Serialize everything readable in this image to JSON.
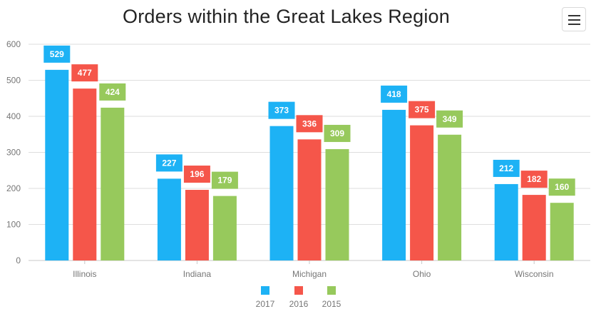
{
  "header": {
    "title": "Orders within the Great Lakes Region",
    "menu_icon": "hamburger-menu-icon"
  },
  "chart_data": {
    "type": "bar",
    "title": "Orders within the Great Lakes Region",
    "xlabel": "",
    "ylabel": "",
    "categories": [
      "Illinois",
      "Indiana",
      "Michigan",
      "Ohio",
      "Wisconsin"
    ],
    "series": [
      {
        "name": "2017",
        "color": "#1db2f5",
        "values": [
          529,
          227,
          373,
          418,
          212
        ]
      },
      {
        "name": "2016",
        "color": "#f5564a",
        "values": [
          477,
          196,
          336,
          375,
          182
        ]
      },
      {
        "name": "2015",
        "color": "#97c95c",
        "values": [
          424,
          179,
          309,
          349,
          160
        ]
      }
    ],
    "ylim": [
      0,
      600
    ],
    "yticks": [
      0,
      100,
      200,
      300,
      400,
      500,
      600
    ],
    "grid": true,
    "legend_position": "bottom-center",
    "data_labels": true
  }
}
